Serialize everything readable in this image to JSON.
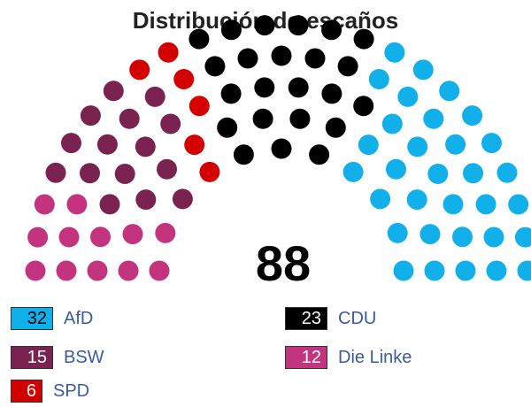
{
  "title": "Distribución de escaños",
  "total": "88",
  "chart_data": {
    "type": "parliament",
    "title": "Distribución de escaños",
    "total": 88,
    "categories": [
      "AfD",
      "BSW",
      "SPD",
      "CDU",
      "Die Linke"
    ],
    "values": [
      32,
      15,
      6,
      23,
      12
    ],
    "series": [
      {
        "name": "AfD",
        "value": 32,
        "color": "#12b0ea"
      },
      {
        "name": "CDU",
        "value": 23,
        "color": "#000000"
      },
      {
        "name": "SPD",
        "value": 6,
        "color": "#d40000"
      },
      {
        "name": "BSW",
        "value": 15,
        "color": "#7a2350"
      },
      {
        "name": "Die Linke",
        "value": 12,
        "color": "#c4337e"
      }
    ],
    "seat_order": [
      "AfD",
      "CDU",
      "SPD",
      "BSW",
      "Die Linke"
    ],
    "legend_placement": "bottom"
  },
  "legend": [
    {
      "value": "32",
      "label": "AfD",
      "color": "#12b0ea",
      "dark": false
    },
    {
      "value": "23",
      "label": "CDU",
      "color": "#000000",
      "dark": true
    },
    {
      "value": "15",
      "label": "BSW",
      "color": "#7a2350",
      "dark": true
    },
    {
      "value": "12",
      "label": "Die Linke",
      "color": "#c4337e",
      "dark": true
    },
    {
      "value": "6",
      "label": "SPD",
      "color": "#d40000",
      "dark": true
    }
  ]
}
